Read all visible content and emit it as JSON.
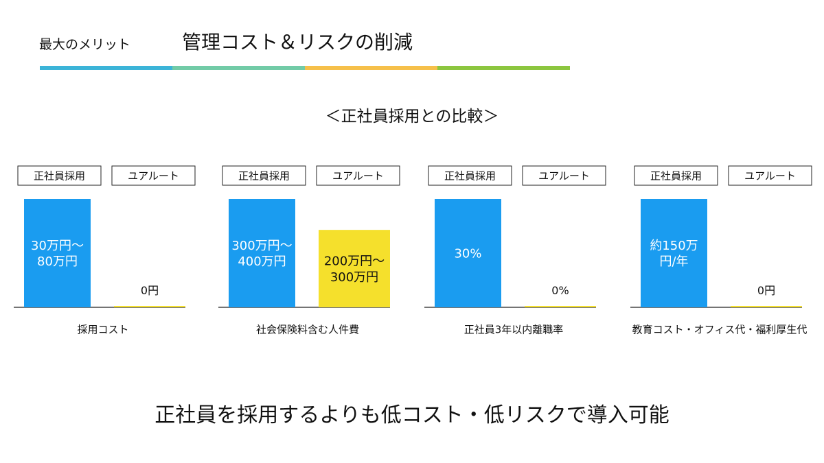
{
  "header": {
    "kicker": "最大のメリット",
    "title": "管理コスト＆リスクの削減",
    "rule_colors": [
      "#3bb4d8",
      "#72cba7",
      "#f6c04a",
      "#8cc63f"
    ]
  },
  "subtitle": "＜正社員採用との比較＞",
  "colors": {
    "seishain": "#1a9cf0",
    "uroot": "#f5e02c",
    "axis": "#222222"
  },
  "chart_data": [
    {
      "type": "bar",
      "categories": [
        "正社員採用",
        "ユアルート"
      ],
      "xlabel": "採用コスト",
      "series": [
        {
          "values": [
            55,
            0
          ],
          "labels": [
            "30万円～\n80万円",
            "0円"
          ]
        }
      ],
      "ylim": [
        0,
        55
      ]
    },
    {
      "type": "bar",
      "categories": [
        "正社員採用",
        "ユアルート"
      ],
      "xlabel": "社会保険料含む人件費",
      "series": [
        {
          "values": [
            350,
            250
          ],
          "labels": [
            "300万円～\n400万円",
            "200万円～\n300万円"
          ]
        }
      ],
      "ylim": [
        0,
        350
      ]
    },
    {
      "type": "bar",
      "categories": [
        "正社員採用",
        "ユアルート"
      ],
      "xlabel": "正社員3年以内離職率",
      "series": [
        {
          "values": [
            30,
            0
          ],
          "labels": [
            "30%",
            "0%"
          ]
        }
      ],
      "ylim": [
        0,
        30
      ]
    },
    {
      "type": "bar",
      "categories": [
        "正社員採用",
        "ユアルート"
      ],
      "xlabel": "教育コスト・オフィス代・福利厚生代",
      "series": [
        {
          "values": [
            150,
            0
          ],
          "labels": [
            "約150万\n円/年",
            "0円"
          ]
        }
      ],
      "ylim": [
        0,
        150
      ]
    }
  ],
  "conclusion": "正社員を採用するよりも低コスト・低リスクで導入可能"
}
